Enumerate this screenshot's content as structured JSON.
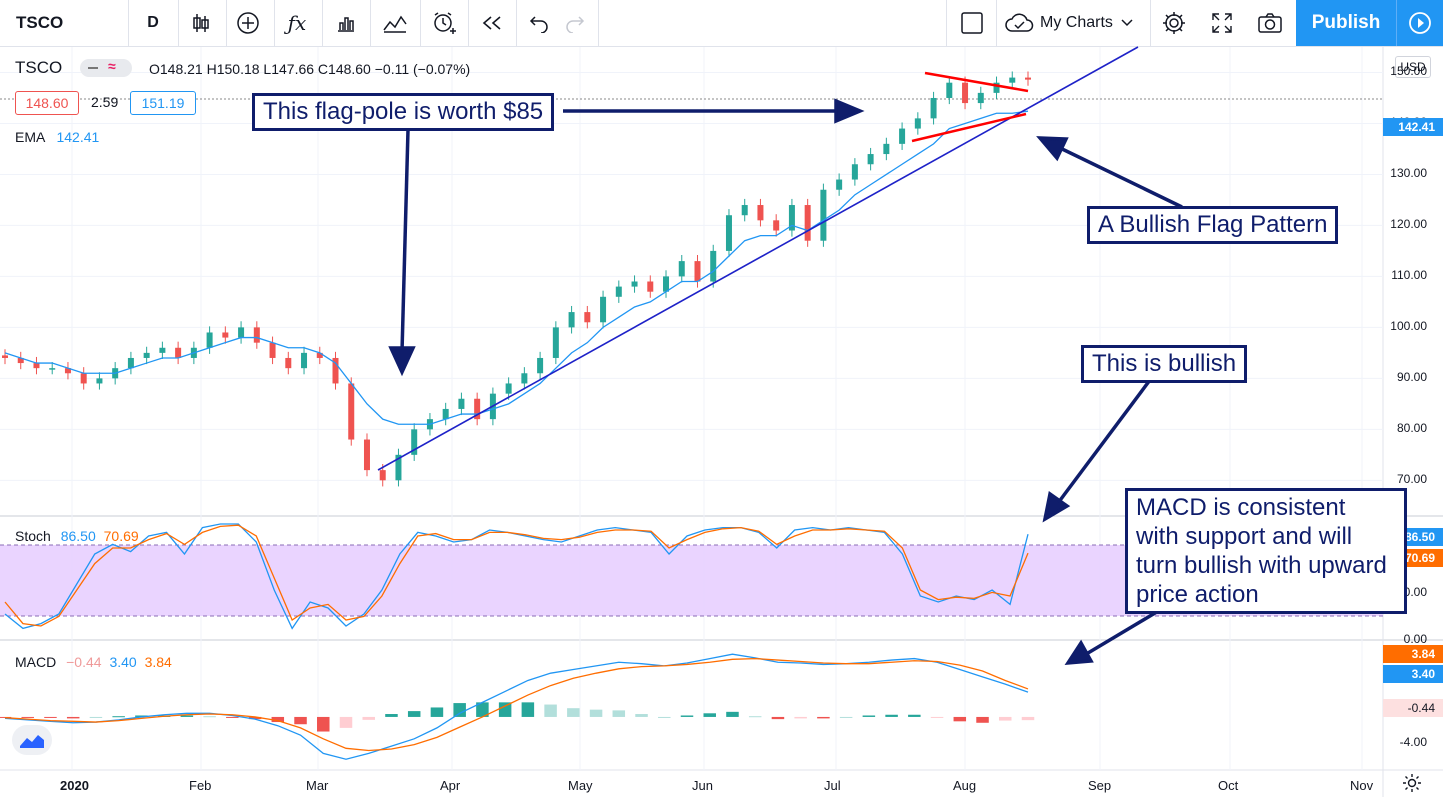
{
  "toolbar": {
    "symbol": "TSCO",
    "interval": "D",
    "my_charts": "My Charts",
    "publish": "Publish"
  },
  "legend": {
    "symbol": "TSCO",
    "ohlc": "O148.21 H150.18 L147.66 C148.60 −0.11 (−0.07%)",
    "bid": "148.60",
    "spread": "2.59",
    "ask": "151.19",
    "ema_label": "EMA",
    "ema_value": "142.41"
  },
  "stoch": {
    "label": "Stoch",
    "k": "86.50",
    "d": "70.69"
  },
  "macd": {
    "label": "MACD",
    "hist": "−0.44",
    "macd": "3.40",
    "signal": "3.84"
  },
  "axis": {
    "currency": "USD",
    "price_ticks": [
      "150.00",
      "140.00",
      "130.00",
      "120.00",
      "110.00",
      "100.00",
      "90.00",
      "80.00",
      "70.00"
    ],
    "ema_tag": "142.41",
    "stoch_ticks": [
      "0.00"
    ],
    "stoch_tag_k": "86.50",
    "stoch_tag_d": "70.69",
    "stoch_mid": "50.00",
    "macd_ticks": [
      "-4.00"
    ],
    "macd_tag_signal": "3.84",
    "macd_tag_macd": "3.40",
    "macd_tag_hist": "-0.44",
    "months": [
      "2020",
      "Feb",
      "Mar",
      "Apr",
      "May",
      "Jun",
      "Jul",
      "Aug",
      "Sep",
      "Oct",
      "Nov"
    ]
  },
  "annotations": {
    "flagpole": "This flag-pole is worth $85",
    "flag": "A Bullish Flag Pattern",
    "bullish": "This is bullish",
    "macd": "MACD is consistent with support and will turn bullish with upward price action",
    "macd_lines": [
      "MACD is consistent",
      "with support and will",
      "turn bullish with upward",
      "price action"
    ]
  },
  "colors": {
    "up": "#26a69a",
    "down": "#ef5350",
    "ema": "#2196f3",
    "accent": "#2196f3",
    "annotation": "#0f1d6b",
    "trend": "#1e22c8",
    "flag": "#ff0000"
  },
  "chart_data": [
    {
      "type": "candlestick",
      "title": "TSCO",
      "series": [
        {
          "name": "TSCO",
          "close": [
            94,
            93,
            92,
            92,
            91,
            89,
            90,
            92,
            94,
            95,
            96,
            94,
            96,
            99,
            98,
            100,
            97,
            94,
            92,
            95,
            94,
            89,
            78,
            72,
            70,
            75,
            80,
            82,
            84,
            86,
            82,
            87,
            89,
            91,
            94,
            100,
            103,
            101,
            106,
            108,
            109,
            107,
            110,
            113,
            109,
            115,
            122,
            124,
            121,
            119,
            124,
            117,
            127,
            129,
            132,
            134,
            136,
            139,
            141,
            145,
            148,
            144,
            146,
            148,
            149,
            148.6
          ]
        },
        {
          "name": "EMA",
          "values": [
            95,
            94,
            93,
            93,
            92,
            91,
            91,
            91,
            92,
            93,
            94,
            94,
            95,
            96,
            97,
            98,
            98,
            97,
            96,
            96,
            95,
            93,
            89,
            85,
            82,
            81,
            81,
            81,
            82,
            83,
            83,
            84,
            85,
            87,
            89,
            92,
            95,
            97,
            100,
            102,
            104,
            105,
            107,
            109,
            109,
            111,
            114,
            117,
            118,
            118,
            120,
            119,
            121,
            123,
            126,
            128,
            130,
            132,
            134,
            136,
            139,
            140,
            141,
            142,
            142,
            142.41
          ]
        }
      ],
      "ylim": [
        63,
        155
      ],
      "currency": "USD"
    },
    {
      "type": "line",
      "title": "Stoch",
      "series": [
        {
          "name": "%K",
          "values": [
            20,
            8,
            12,
            20,
            45,
            70,
            78,
            72,
            85,
            88,
            70,
            92,
            95,
            95,
            80,
            40,
            8,
            30,
            25,
            10,
            20,
            40,
            70,
            88,
            85,
            80,
            82,
            90,
            88,
            85,
            82,
            80,
            85,
            90,
            92,
            90,
            88,
            70,
            85,
            90,
            92,
            92,
            88,
            75,
            90,
            92,
            90,
            92,
            90,
            88,
            70,
            35,
            30,
            35,
            32,
            40,
            28,
            86.5
          ]
        },
        {
          "name": "%D",
          "values": [
            30,
            12,
            10,
            18,
            40,
            62,
            75,
            75,
            82,
            87,
            78,
            88,
            93,
            94,
            85,
            50,
            15,
            25,
            28,
            15,
            18,
            35,
            62,
            85,
            87,
            82,
            82,
            88,
            88,
            86,
            83,
            82,
            84,
            88,
            90,
            90,
            89,
            75,
            82,
            88,
            91,
            92,
            89,
            78,
            85,
            90,
            90,
            91,
            90,
            89,
            75,
            40,
            32,
            34,
            33,
            38,
            35,
            70.69
          ]
        }
      ],
      "ylim": [
        0,
        100
      ]
    },
    {
      "type": "line",
      "title": "MACD",
      "series": [
        {
          "name": "MACD",
          "values": [
            -0.2,
            -0.4,
            -0.6,
            -0.8,
            -0.7,
            -0.4,
            0,
            0.3,
            0.5,
            0.5,
            0.2,
            -0.3,
            -1.2,
            -2.5,
            -5,
            -5.8,
            -5,
            -4,
            -3,
            -1.5,
            0.5,
            2,
            3.5,
            5,
            6,
            6.5,
            7,
            7.5,
            7.3,
            7,
            7.4,
            8,
            8.6,
            8.1,
            7.5,
            7.4,
            7.2,
            7.3,
            7.5,
            7.8,
            8,
            7.5,
            6.5,
            5.5,
            4.5,
            3.4
          ]
        },
        {
          "name": "Signal",
          "values": [
            -0.1,
            -0.3,
            -0.5,
            -0.6,
            -0.7,
            -0.5,
            -0.2,
            0.1,
            0.3,
            0.4,
            0.3,
            0,
            -0.5,
            -1.5,
            -3,
            -4.3,
            -4.6,
            -4.4,
            -3.8,
            -2.8,
            -1.4,
            0,
            1.5,
            3,
            4.3,
            5.3,
            6,
            6.6,
            6.9,
            7,
            7.2,
            7.5,
            7.9,
            8,
            7.8,
            7.6,
            7.4,
            7.3,
            7.3,
            7.5,
            7.7,
            7.6,
            7.1,
            6.3,
            5,
            3.84
          ]
        },
        {
          "name": "Histogram",
          "values": [
            -0.1,
            -0.1,
            -0.1,
            -0.2,
            0,
            0.1,
            0.2,
            0.2,
            0.2,
            0.1,
            -0.1,
            -0.3,
            -0.7,
            -1,
            -2,
            -1.5,
            -0.4,
            0.4,
            0.8,
            1.3,
            1.9,
            2,
            2,
            2,
            1.7,
            1.2,
            1,
            0.9,
            0.4,
            0,
            0.2,
            0.5,
            0.7,
            0.1,
            -0.3,
            -0.2,
            -0.2,
            0,
            0.2,
            0.3,
            0.3,
            -0.1,
            -0.6,
            -0.8,
            -0.5,
            -0.44
          ]
        }
      ],
      "ylim": [
        -7,
        10
      ]
    }
  ]
}
